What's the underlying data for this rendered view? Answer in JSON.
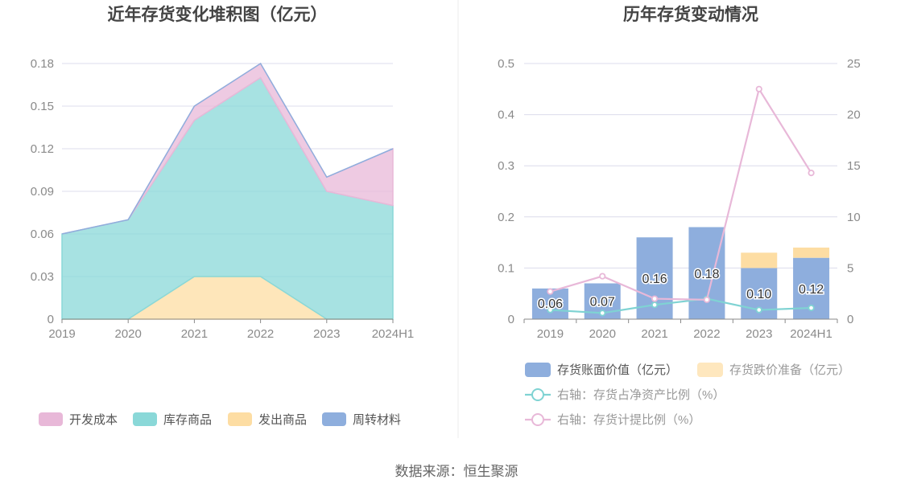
{
  "footer": {
    "source": "数据来源：恒生聚源"
  },
  "colors": {
    "kaifa": "#e8b8d8",
    "kucun": "#8ad8d8",
    "fachu": "#fddda3",
    "zhouzhuan": "#8eaedd",
    "bar_book": "#8eaedd",
    "bar_provision": "#fddda3",
    "line_ratio": "#7fd3d3",
    "line_provision": "#e8b8d8"
  },
  "chart_data": [
    {
      "type": "area",
      "title": "近年存货变化堆积图（亿元）",
      "categories": [
        "2019",
        "2020",
        "2021",
        "2022",
        "2023",
        "2024H1"
      ],
      "ylim": [
        0,
        0.18
      ],
      "yticks": [
        "0",
        "0.03",
        "0.06",
        "0.09",
        "0.12",
        "0.15",
        "0.18"
      ],
      "stacked": true,
      "grid": true,
      "legend_position": "bottom",
      "series": [
        {
          "name": "发出商品",
          "values": [
            0,
            0,
            0.03,
            0.03,
            0,
            0
          ]
        },
        {
          "name": "库存商品",
          "values": [
            0.06,
            0.07,
            0.11,
            0.14,
            0.09,
            0.08
          ]
        },
        {
          "name": "开发成本",
          "values": [
            0,
            0,
            0.01,
            0.01,
            0.01,
            0.04
          ]
        },
        {
          "name": "周转材料",
          "values": [
            0,
            0,
            0,
            0,
            0,
            0
          ]
        }
      ],
      "legend": [
        "开发成本",
        "库存商品",
        "发出商品",
        "周转材料"
      ]
    },
    {
      "type": "bar",
      "title": "历年存货变动情况",
      "categories": [
        "2019",
        "2020",
        "2021",
        "2022",
        "2023",
        "2024H1"
      ],
      "ylim_left": [
        0,
        0.5
      ],
      "yticks_left": [
        "0",
        "0.1",
        "0.2",
        "0.3",
        "0.4",
        "0.5"
      ],
      "ylim_right": [
        0,
        25
      ],
      "yticks_right": [
        "0",
        "5",
        "10",
        "15",
        "20",
        "25"
      ],
      "grid": true,
      "legend_position": "bottom",
      "bars": [
        {
          "name": "存货账面价值（亿元）",
          "values": [
            0.06,
            0.07,
            0.16,
            0.18,
            0.1,
            0.12
          ],
          "labels": [
            "0.06",
            "0.07",
            "0.16",
            "0.18",
            "0.10",
            "0.12"
          ]
        },
        {
          "name": "存货跌价准备（亿元）",
          "values": [
            0,
            0,
            0,
            0,
            0.03,
            0.02
          ]
        }
      ],
      "lines": [
        {
          "name": "右轴：存货占净资产比例（%）",
          "axis": "right",
          "values": [
            0.9,
            0.6,
            1.4,
            2.0,
            0.9,
            1.1
          ]
        },
        {
          "name": "右轴：存货计提比例（%）",
          "axis": "right",
          "values": [
            2.7,
            4.2,
            2.0,
            1.9,
            22.5,
            14.3
          ]
        }
      ]
    }
  ]
}
